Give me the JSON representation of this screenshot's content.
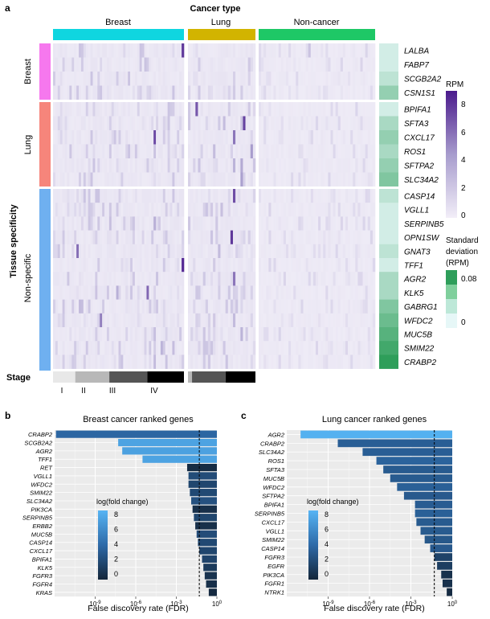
{
  "panel_a": {
    "label": "a",
    "column_title": "Cancer type",
    "row_title": "Tissue specificity",
    "groups": [
      "Breast",
      "Lung",
      "Non-cancer"
    ],
    "group_colors": [
      "#0fd6e0",
      "#d2b400",
      "#1ec866"
    ],
    "row_groups": [
      "Breast",
      "Lung",
      "Non-specific"
    ],
    "row_group_colors": [
      "#f678ee",
      "#f6857b",
      "#6fb0f0"
    ],
    "stage_label": "Stage",
    "stage_ticks": [
      "I",
      "II",
      "III",
      "IV"
    ],
    "stage_colors": [
      "#e8e8e8",
      "#b8b8b8",
      "#555555",
      "#000000"
    ],
    "rpm_legend": {
      "title": "RPM",
      "ticks": [
        "8",
        "6",
        "4",
        "2",
        "0"
      ]
    },
    "sd_legend": {
      "title_lines": [
        "Standard",
        "deviation",
        "(RPM)"
      ],
      "ticks": [
        "0.08",
        "0"
      ]
    }
  },
  "chart_data": [
    {
      "type": "heatmap",
      "title": "Cancer type",
      "xlabel": "Cancer type",
      "ylabel": "Tissue specificity",
      "columns_per_group": [
        56,
        27,
        47
      ],
      "rows": [
        {
          "gene": "LALBA",
          "group": "Breast",
          "sd": 0.01
        },
        {
          "gene": "FABP7",
          "group": "Breast",
          "sd": 0.01
        },
        {
          "gene": "SCGB2A2",
          "group": "Breast",
          "sd": 0.02
        },
        {
          "gene": "CSN1S1",
          "group": "Breast",
          "sd": 0.04
        },
        {
          "gene": "BPIFA1",
          "group": "Lung",
          "sd": 0.01
        },
        {
          "gene": "SFTA3",
          "group": "Lung",
          "sd": 0.03
        },
        {
          "gene": "CXCL17",
          "group": "Lung",
          "sd": 0.04
        },
        {
          "gene": "ROS1",
          "group": "Lung",
          "sd": 0.03
        },
        {
          "gene": "SFTPA2",
          "group": "Lung",
          "sd": 0.04
        },
        {
          "gene": "SLC34A2",
          "group": "Lung",
          "sd": 0.05
        },
        {
          "gene": "CASP14",
          "group": "Non-specific",
          "sd": 0.02
        },
        {
          "gene": "VGLL1",
          "group": "Non-specific",
          "sd": 0.01
        },
        {
          "gene": "SERPINB5",
          "group": "Non-specific",
          "sd": 0.01
        },
        {
          "gene": "OPN1SW",
          "group": "Non-specific",
          "sd": 0.01
        },
        {
          "gene": "GNAT3",
          "group": "Non-specific",
          "sd": 0.02
        },
        {
          "gene": "TFF1",
          "group": "Non-specific",
          "sd": 0.01
        },
        {
          "gene": "AGR2",
          "group": "Non-specific",
          "sd": 0.03
        },
        {
          "gene": "KLK5",
          "group": "Non-specific",
          "sd": 0.03
        },
        {
          "gene": "GABRG1",
          "group": "Non-specific",
          "sd": 0.05
        },
        {
          "gene": "WFDC2",
          "group": "Non-specific",
          "sd": 0.06
        },
        {
          "gene": "MUC5B",
          "group": "Non-specific",
          "sd": 0.07
        },
        {
          "gene": "SMIM22",
          "group": "Non-specific",
          "sd": 0.08
        },
        {
          "gene": "CRABP2",
          "group": "Non-specific",
          "sd": 0.09
        }
      ],
      "stage_fractions_breast": [
        0.17,
        0.26,
        0.29,
        0.28
      ],
      "stage_fractions_lung": [
        0.06,
        0.5,
        0.44
      ],
      "value_range_rpm": [
        0,
        8.5
      ],
      "sd_range": [
        0,
        0.09
      ]
    },
    {
      "type": "bar",
      "panel": "b",
      "title": "Breast cancer ranked genes",
      "xlabel": "False discovery rate (FDR)",
      "xscale": "log10",
      "xlim": [
        -12,
        0
      ],
      "xticks": [
        "10^-9",
        "10^-6",
        "10^-3",
        "10^0"
      ],
      "threshold_fdr_log10": -1.3,
      "legend_title": "log(fold change)",
      "legend_ticks": [
        "8",
        "6",
        "4",
        "2",
        "0"
      ],
      "categories": [
        "CRABP2",
        "SCGB2A2",
        "AGR2",
        "TFF1",
        "RET",
        "VGLL1",
        "WFDC2",
        "SMIM22",
        "SLC34A2",
        "PIK3CA",
        "SERPINB5",
        "ERBB2",
        "MUC5B",
        "CASP14",
        "CXCL17",
        "BPIFA1",
        "KLK5",
        "FGFR3",
        "FGFR4",
        "KRAS"
      ],
      "log10_fdr": [
        -11.9,
        -7.3,
        -7.0,
        -5.5,
        -2.2,
        -2.1,
        -2.1,
        -2.0,
        -1.9,
        -1.8,
        -1.7,
        -1.6,
        -1.5,
        -1.4,
        -1.3,
        -1.1,
        -1.0,
        -0.9,
        -0.8,
        -0.6
      ],
      "log_fold_change": [
        4.0,
        7.5,
        7.4,
        7.5,
        0.4,
        2.4,
        2.0,
        2.2,
        2.7,
        0.6,
        2.0,
        0.6,
        2.4,
        2.2,
        2.0,
        1.9,
        1.3,
        0.8,
        0.6,
        0.3
      ]
    },
    {
      "type": "bar",
      "panel": "c",
      "title": "Lung cancer ranked genes",
      "xlabel": "False discovery rate (FDR)",
      "xscale": "log10",
      "xlim": [
        -12,
        0
      ],
      "xticks": [
        "10^-9",
        "10^-6",
        "10^-3",
        "10^0"
      ],
      "threshold_fdr_log10": -1.3,
      "legend_title": "log(fold change)",
      "legend_ticks": [
        "8",
        "6",
        "4",
        "2",
        "0"
      ],
      "categories": [
        "AGR2",
        "CRABP2",
        "SLC34A2",
        "ROS1",
        "SFTA3",
        "MUC5B",
        "WFDC2",
        "SFTPA2",
        "BPIFA1",
        "SERPINB5",
        "CXCL17",
        "VGLL1",
        "SMIM22",
        "CASP14",
        "FGFR3",
        "EGFR",
        "PIK3CA",
        "FGFR1",
        "NTRK1"
      ],
      "log10_fdr": [
        -11.0,
        -8.3,
        -6.5,
        -5.5,
        -5.0,
        -4.5,
        -4.0,
        -3.5,
        -2.7,
        -2.7,
        -2.6,
        -2.3,
        -2.0,
        -1.6,
        -1.3,
        -1.1,
        -0.8,
        -0.7,
        -0.4
      ],
      "log_fold_change": [
        8.3,
        3.5,
        3.5,
        3.8,
        3.3,
        3.3,
        3.6,
        3.2,
        3.4,
        3.6,
        3.3,
        3.3,
        3.1,
        3.2,
        1.8,
        1.5,
        0.7,
        0.7,
        0.3
      ]
    }
  ]
}
